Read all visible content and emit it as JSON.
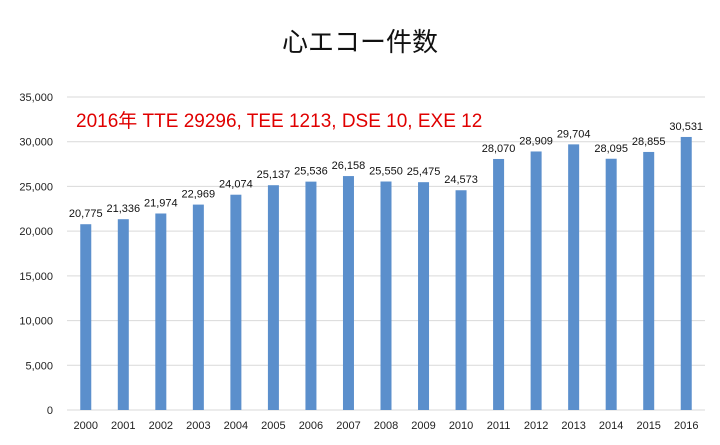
{
  "chart_data": {
    "type": "bar",
    "title": "心エコー件数",
    "annotation": "2016年 TTE 29296, TEE 1213, DSE 10, EXE 12",
    "categories": [
      "2000",
      "2001",
      "2002",
      "2003",
      "2004",
      "2005",
      "2006",
      "2007",
      "2008",
      "2009",
      "2010",
      "2011",
      "2012",
      "2013",
      "2014",
      "2015",
      "2016"
    ],
    "values": [
      20775,
      21336,
      21974,
      22969,
      24074,
      25137,
      25536,
      26158,
      25550,
      25475,
      24573,
      28070,
      28909,
      29704,
      28095,
      28855,
      30531
    ],
    "data_labels": [
      "20,775",
      "21,336",
      "21,974",
      "22,969",
      "24,074",
      "25,137",
      "25,536",
      "26,158",
      "25,550",
      "25,475",
      "24,573",
      "28,070",
      "28,909",
      "29,704",
      "28,095",
      "28,855",
      "30,531"
    ],
    "ylim": [
      0,
      35000
    ],
    "yticks": [
      0,
      5000,
      10000,
      15000,
      20000,
      25000,
      30000,
      35000
    ],
    "ytick_labels": [
      "0",
      "5,000",
      "10,000",
      "15,000",
      "20,000",
      "25,000",
      "30,000",
      "35,000"
    ],
    "xlabel": "",
    "ylabel": "",
    "grid": true,
    "legend": "none",
    "bar_color": "#5b8fcc",
    "grid_color": "#d9d9d9"
  }
}
